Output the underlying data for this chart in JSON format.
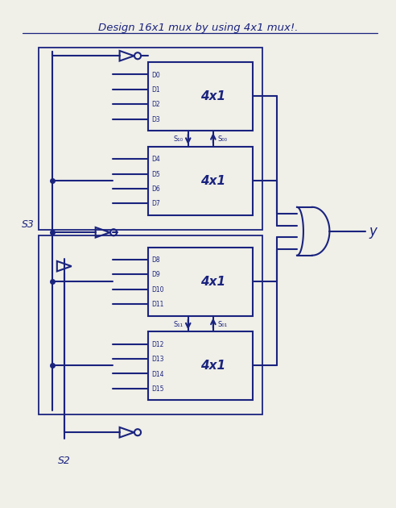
{
  "title": "Design 16x1 mux by using 4x1 mux!.",
  "bg_color": "#f0efe8",
  "line_color": "#1a237e",
  "text_color": "#1a237e",
  "input_groups": [
    [
      "D0",
      "D1",
      "D2",
      "D3"
    ],
    [
      "D4",
      "D5",
      "D6",
      "D7"
    ],
    [
      "D8",
      "D9",
      "D10",
      "D11"
    ],
    [
      "D12",
      "D13",
      "D14",
      "D15"
    ]
  ],
  "mux_label": "4x1",
  "output_label": "y",
  "s3_label": "S3",
  "s2_label": "S2",
  "s10_label_top": "S1",
  "s00_label_top": "S0",
  "s10_label_bot": "S1",
  "s00_label_bot": "S0"
}
